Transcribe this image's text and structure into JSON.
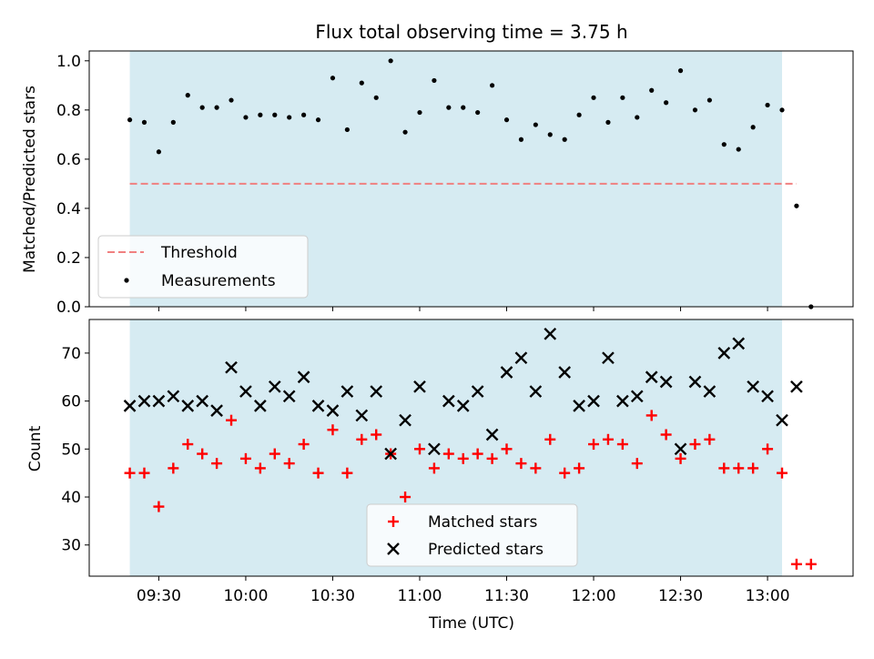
{
  "chart_data": [
    {
      "type": "scatter",
      "title": "Flux total observing time = 3.75 h",
      "xlabel": "",
      "ylabel": "Matched/Predicted stars",
      "ylim": [
        0.0,
        1.04
      ],
      "yticks": [
        "0.0",
        "0.2",
        "0.4",
        "0.6",
        "0.8",
        "1.0"
      ],
      "observing_window": [
        "09:20",
        "13:05"
      ],
      "threshold": {
        "name": "Threshold",
        "value": 0.5,
        "color": "#f08080"
      },
      "legend_position": "lower-left",
      "series": [
        {
          "name": "Measurements",
          "color": "#000000",
          "x": [
            "09:20",
            "09:25",
            "09:30",
            "09:35",
            "09:40",
            "09:45",
            "09:50",
            "09:55",
            "10:00",
            "10:05",
            "10:10",
            "10:15",
            "10:20",
            "10:25",
            "10:30",
            "10:35",
            "10:40",
            "10:45",
            "10:50",
            "10:55",
            "11:00",
            "11:05",
            "11:10",
            "11:15",
            "11:20",
            "11:25",
            "11:30",
            "11:35",
            "11:40",
            "11:45",
            "11:50",
            "11:55",
            "12:00",
            "12:05",
            "12:10",
            "12:15",
            "12:20",
            "12:25",
            "12:30",
            "12:35",
            "12:40",
            "12:45",
            "12:50",
            "12:55",
            "13:00",
            "13:05",
            "13:10",
            "13:15"
          ],
          "y": [
            0.76,
            0.75,
            0.63,
            0.75,
            0.86,
            0.81,
            0.81,
            0.84,
            0.77,
            0.78,
            0.78,
            0.77,
            0.78,
            0.76,
            0.93,
            0.72,
            0.91,
            0.85,
            1.0,
            0.71,
            0.79,
            0.92,
            0.81,
            0.81,
            0.79,
            0.9,
            0.76,
            0.68,
            0.74,
            0.7,
            0.68,
            0.78,
            0.85,
            0.75,
            0.85,
            0.77,
            0.88,
            0.83,
            0.96,
            0.8,
            0.84,
            0.66,
            0.64,
            0.73,
            0.82,
            0.8,
            0.41,
            0.0
          ]
        }
      ]
    },
    {
      "type": "scatter",
      "title": "",
      "xlabel": "Time (UTC)",
      "ylabel": "Count",
      "ylim": [
        23.5,
        77
      ],
      "yticks": [
        "30",
        "40",
        "50",
        "60",
        "70"
      ],
      "xticks": [
        "09:30",
        "10:00",
        "10:30",
        "11:00",
        "11:30",
        "12:00",
        "12:30",
        "13:00"
      ],
      "observing_window": [
        "09:20",
        "13:05"
      ],
      "legend_position": "lower-center",
      "series": [
        {
          "name": "Matched stars",
          "marker": "+",
          "color": "#ff0000",
          "x": [
            "09:20",
            "09:25",
            "09:30",
            "09:35",
            "09:40",
            "09:45",
            "09:50",
            "09:55",
            "10:00",
            "10:05",
            "10:10",
            "10:15",
            "10:20",
            "10:25",
            "10:30",
            "10:35",
            "10:40",
            "10:45",
            "10:50",
            "10:55",
            "11:00",
            "11:05",
            "11:10",
            "11:15",
            "11:20",
            "11:25",
            "11:30",
            "11:35",
            "11:40",
            "11:45",
            "11:50",
            "11:55",
            "12:00",
            "12:05",
            "12:10",
            "12:15",
            "12:20",
            "12:25",
            "12:30",
            "12:35",
            "12:40",
            "12:45",
            "12:50",
            "12:55",
            "13:00",
            "13:05",
            "13:10",
            "13:15"
          ],
          "y": [
            45,
            45,
            38,
            46,
            51,
            49,
            47,
            56,
            48,
            46,
            49,
            47,
            51,
            45,
            54,
            45,
            52,
            53,
            49,
            40,
            50,
            46,
            49,
            48,
            49,
            48,
            50,
            47,
            46,
            52,
            45,
            46,
            51,
            52,
            51,
            47,
            57,
            53,
            48,
            51,
            52,
            46,
            46,
            46,
            50,
            45,
            26,
            26
          ]
        },
        {
          "name": "Predicted stars",
          "marker": "x",
          "color": "#000000",
          "x": [
            "09:20",
            "09:25",
            "09:30",
            "09:35",
            "09:40",
            "09:45",
            "09:50",
            "09:55",
            "10:00",
            "10:05",
            "10:10",
            "10:15",
            "10:20",
            "10:25",
            "10:30",
            "10:35",
            "10:40",
            "10:45",
            "10:50",
            "10:55",
            "11:00",
            "11:05",
            "11:10",
            "11:15",
            "11:20",
            "11:25",
            "11:30",
            "11:35",
            "11:40",
            "11:45",
            "11:50",
            "11:55",
            "12:00",
            "12:05",
            "12:10",
            "12:15",
            "12:20",
            "12:25",
            "12:30",
            "12:35",
            "12:40",
            "12:45",
            "12:50",
            "12:55",
            "13:00",
            "13:05",
            "13:10"
          ],
          "y": [
            59,
            60,
            60,
            61,
            59,
            60,
            58,
            67,
            62,
            59,
            63,
            61,
            65,
            59,
            58,
            62,
            57,
            62,
            49,
            56,
            63,
            50,
            60,
            59,
            62,
            53,
            66,
            69,
            62,
            74,
            66,
            59,
            60,
            69,
            60,
            61,
            65,
            64,
            50,
            64,
            62,
            70,
            72,
            63,
            61,
            56,
            63
          ]
        }
      ]
    }
  ]
}
